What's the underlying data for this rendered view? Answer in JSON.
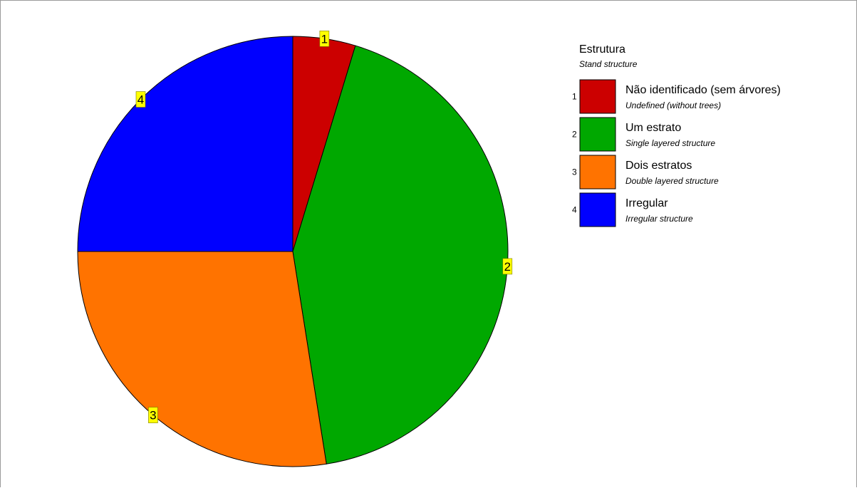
{
  "chart_data": {
    "type": "pie",
    "title": "",
    "legend": {
      "title": "Estrutura",
      "subtitle": "Stand structure",
      "placement": "right"
    },
    "slices": [
      {
        "id": "1",
        "label": "Não identificado (sem árvores)",
        "sublabel": "Undefined (without trees)",
        "value": 4.7,
        "color": "#cc0000"
      },
      {
        "id": "2",
        "label": "Um estrato",
        "sublabel": "Single layered structure",
        "value": 42.8,
        "color": "#00a800"
      },
      {
        "id": "3",
        "label": "Dois estratos",
        "sublabel": "Double layered structure",
        "value": 27.5,
        "color": "#ff7300"
      },
      {
        "id": "4",
        "label": "Irregular",
        "sublabel": "Irregular structure",
        "value": 25.0,
        "color": "#0000ff"
      }
    ]
  }
}
